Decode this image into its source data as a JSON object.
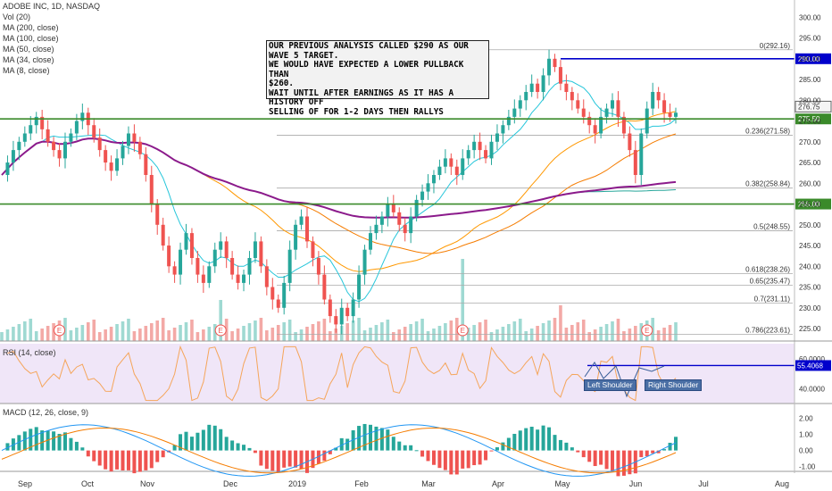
{
  "legend": {
    "symbol": "ADOBE INC, 1D, NASDAQ",
    "indicators": [
      "Vol (20)",
      "MA (200, close)",
      "MA (100, close)",
      "MA (50, close)",
      "MA (34, close)",
      "MA (8, close)"
    ],
    "rsi": "RSI (14, close)",
    "macd": "MACD (12, 26, close, 9)"
  },
  "annotation": {
    "text": "OUR PREVIOUS ANALYSIS CALLED $290 AS OUR\nWAVE 5 TARGET.\nWE WOULD HAVE EXPECTED A LOWER PULLBACK THAN\n$260.\nWAIT UNTIL AFTER EARNINGS AS IT HAS A HISTORY OFF\nSELLING OF FOR 1-2 DAYS THEN RALLYS"
  },
  "pattern_labels": {
    "left": "Left Shoulder",
    "right": "Right Shoulder"
  },
  "earnings_marker": "E",
  "colors": {
    "up": "#26a69a",
    "down": "#ef5350",
    "ma200": "#8b1a8b",
    "ma100": "#26a69a",
    "ma50": "#f57c00",
    "ma34": "#ff9800",
    "ma8": "#26c6da",
    "resistance": "#0000cc",
    "support": "#3a8a2a",
    "rsi": "#f5a55a",
    "rsi_bg": "#f0e6f8"
  },
  "chart_data": [
    {
      "type": "candlestick",
      "title": "ADOBE INC, 1D, NASDAQ",
      "x_labels": [
        "Sep",
        "Oct",
        "Nov",
        "Dec",
        "2019",
        "Feb",
        "Mar",
        "Apr",
        "May",
        "Jun",
        "Jul",
        "Aug"
      ],
      "ylim": [
        222,
        302
      ],
      "y_ticks": [
        225,
        230,
        235,
        240,
        245,
        250,
        255,
        260,
        265,
        270,
        275,
        280,
        285,
        290,
        295,
        300
      ],
      "y_tick_labels": [
        "225.00",
        "230.00",
        "235.00",
        "240.00",
        "245.00",
        "250.00",
        "255.00",
        "260.00",
        "265.00",
        "270.00",
        "275.00",
        "280.00",
        "285.00",
        "290.00",
        "295.00",
        "300.00"
      ],
      "fibonacci": [
        {
          "label": "0(292.16)",
          "value": 292.16
        },
        {
          "label": "0.236(271.58)",
          "value": 271.58
        },
        {
          "label": "0.382(258.84)",
          "value": 258.84
        },
        {
          "label": "0.5(248.55)",
          "value": 248.55
        },
        {
          "label": "0.618(238.26)",
          "value": 238.26
        },
        {
          "label": "0.65(235.47)",
          "value": 235.47
        },
        {
          "label": "0.7(231.11)",
          "value": 231.11
        },
        {
          "label": "0.786(223.61)",
          "value": 223.61
        }
      ],
      "horizontal_levels": [
        {
          "label": "290.00",
          "value": 290.0,
          "color": "#0000cc"
        },
        {
          "label": "275.50",
          "value": 275.5,
          "color": "#3a8a2a"
        },
        {
          "label": "255.00",
          "value": 255.0,
          "color": "#3a8a2a"
        }
      ],
      "last_price": {
        "label": "276.75",
        "value": 276.75
      },
      "series_close": [
        262,
        265,
        268,
        270,
        272,
        274,
        276,
        273,
        270,
        268,
        266,
        270,
        272,
        275,
        277,
        274,
        271,
        268,
        265,
        263,
        266,
        269,
        272,
        270,
        267,
        262,
        255,
        250,
        245,
        240,
        238,
        244,
        248,
        242,
        238,
        236,
        240,
        244,
        246,
        242,
        238,
        236,
        238,
        242,
        246,
        240,
        235,
        232,
        230,
        236,
        244,
        250,
        252,
        246,
        242,
        238,
        232,
        228,
        226,
        230,
        228,
        232,
        238,
        244,
        248,
        250,
        252,
        255,
        253,
        250,
        248,
        252,
        256,
        258,
        260,
        262,
        264,
        266,
        264,
        262,
        266,
        268,
        270,
        268,
        266,
        270,
        272,
        274,
        276,
        278,
        280,
        282,
        284,
        282,
        286,
        290,
        288,
        284,
        282,
        280,
        278,
        276,
        274,
        272,
        276,
        278,
        280,
        276,
        272,
        268,
        262,
        272,
        278,
        282,
        280,
        277,
        276,
        277
      ]
    },
    {
      "type": "line",
      "title": "RSI (14, close)",
      "y_ticks": [
        40,
        60
      ],
      "y_tick_labels": [
        "40.0000",
        "60.0000"
      ],
      "last_value": {
        "label": "55.4068",
        "value": 55.4068
      }
    },
    {
      "type": "bar",
      "title": "MACD (12, 26, close, 9)",
      "y_ticks": [
        2,
        1,
        0,
        -1
      ],
      "y_tick_labels": [
        "2.00",
        "1.00",
        "0.00",
        "-1.00"
      ]
    }
  ]
}
